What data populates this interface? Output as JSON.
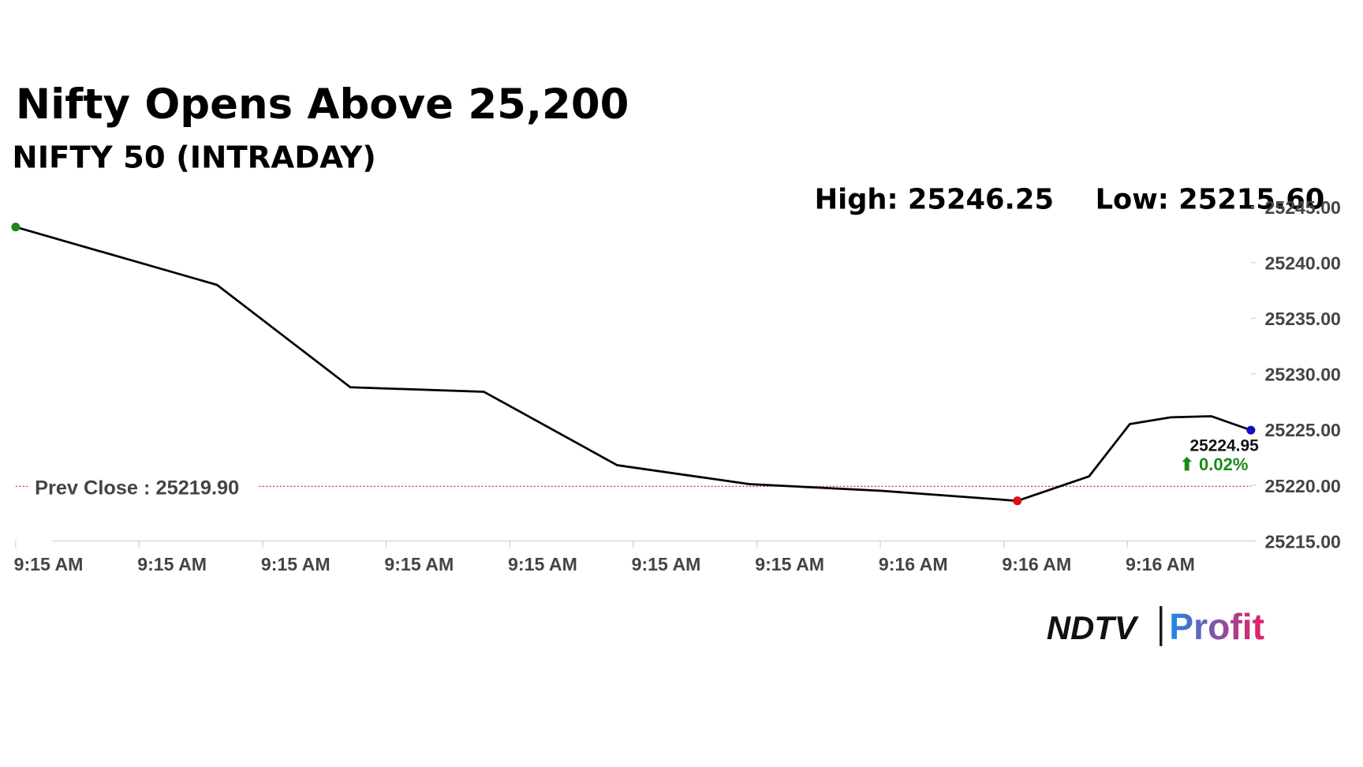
{
  "chart_data": {
    "type": "line",
    "title": "Nifty Opens Above 25,200",
    "subtitle": "NIFTY 50 (INTRADAY)",
    "high_label": "High: 25246.25",
    "low_label": "Low: 25215.60",
    "prev_close": {
      "value": 25219.9,
      "label": "Prev Close : 25219.90"
    },
    "last_value_label": "25224.95",
    "change_label": "⬆ 0.02%",
    "brand": "NDTV",
    "brand_sub": "Profit",
    "x": [
      0,
      1.63,
      2.71,
      3.79,
      4.87,
      5.94,
      7.01,
      8.11,
      8.69,
      9.02,
      9.35,
      9.68,
      10.0
    ],
    "series": [
      {
        "color": "#000000",
        "values": [
          25243.2,
          25238.0,
          25228.8,
          25228.4,
          25221.8,
          25220.1,
          25219.5,
          25218.6,
          25220.8,
          25225.5,
          25226.1,
          25226.2,
          25224.95
        ]
      }
    ],
    "xlim": [
      0,
      10.0
    ],
    "xticks": [
      {
        "value": 0,
        "label": "9:15 AM"
      },
      {
        "value": 1,
        "label": "9:15 AM"
      },
      {
        "value": 2,
        "label": "9:15 AM"
      },
      {
        "value": 3,
        "label": "9:15 AM"
      },
      {
        "value": 4,
        "label": "9:15 AM"
      },
      {
        "value": 5,
        "label": "9:15 AM"
      },
      {
        "value": 6,
        "label": "9:15 AM"
      },
      {
        "value": 7,
        "label": "9:16 AM"
      },
      {
        "value": 8,
        "label": "9:16 AM"
      },
      {
        "value": 9,
        "label": "9:16 AM"
      }
    ],
    "ylim": [
      25215,
      25245
    ],
    "yticks": [
      {
        "value": 25245,
        "label": "25245.00"
      },
      {
        "value": 25240,
        "label": "25240.00"
      },
      {
        "value": 25235,
        "label": "25235.00"
      },
      {
        "value": 25230,
        "label": "25230.00"
      },
      {
        "value": 25225,
        "label": "25225.00"
      },
      {
        "value": 25220,
        "label": "25220.00"
      },
      {
        "value": 25215,
        "label": "25215.00"
      }
    ],
    "marker_colors": {
      "first": "#1a8a1a",
      "min": "#e01010",
      "last": "#1010c0"
    },
    "prev_close_color": "#b03030",
    "change_color": "#1a8a1a"
  }
}
